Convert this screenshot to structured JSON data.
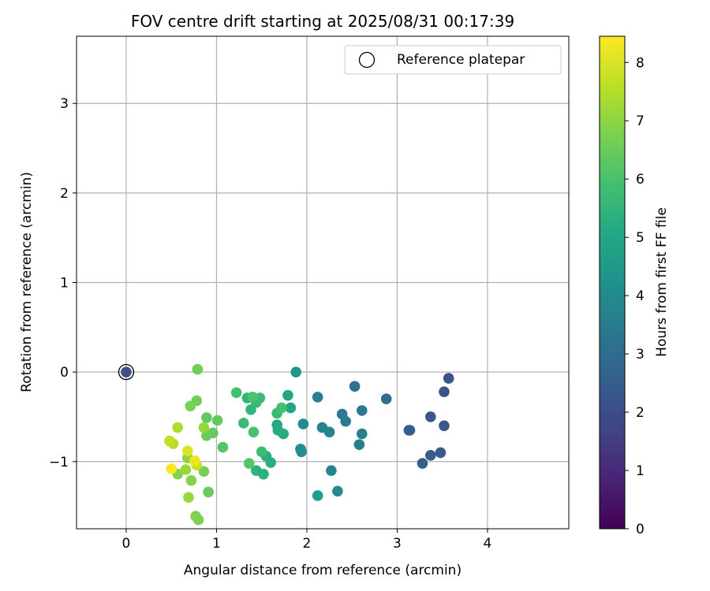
{
  "chart_data": {
    "type": "scatter",
    "title": "FOV centre drift starting at 2025/08/31 00:17:39",
    "xlabel": "Angular distance from reference (arcmin)",
    "ylabel": "Rotation from reference (arcmin)",
    "xlim": [
      -0.55,
      4.9
    ],
    "ylim": [
      -1.75,
      3.75
    ],
    "xticks": [
      0,
      1,
      2,
      3,
      4
    ],
    "yticks": [
      -1,
      0,
      1,
      2,
      3
    ],
    "grid": true,
    "legend": {
      "position": "top-right",
      "entries": [
        "Reference platepar"
      ]
    },
    "colorbar": {
      "label": "Hours from first FF file",
      "colormap": "viridis",
      "range": [
        0,
        8.45
      ],
      "ticks": [
        0,
        1,
        2,
        3,
        4,
        5,
        6,
        7,
        8
      ]
    },
    "reference": {
      "x": 0,
      "y": 0,
      "label": "Reference platepar",
      "hours": 2.0
    },
    "points": [
      {
        "x": 3.57,
        "y": -0.07,
        "h": 2.2
      },
      {
        "x": 3.52,
        "y": -0.22,
        "h": 2.2
      },
      {
        "x": 3.37,
        "y": -0.5,
        "h": 2.3
      },
      {
        "x": 3.52,
        "y": -0.6,
        "h": 2.3
      },
      {
        "x": 3.14,
        "y": -0.65,
        "h": 2.4
      },
      {
        "x": 3.13,
        "y": -0.65,
        "h": 2.4
      },
      {
        "x": 3.48,
        "y": -0.9,
        "h": 2.4
      },
      {
        "x": 3.37,
        "y": -0.93,
        "h": 2.5
      },
      {
        "x": 3.28,
        "y": -1.02,
        "h": 2.5
      },
      {
        "x": 2.88,
        "y": -0.3,
        "h": 3.0
      },
      {
        "x": 2.53,
        "y": -0.16,
        "h": 3.2
      },
      {
        "x": 2.61,
        "y": -0.43,
        "h": 3.4
      },
      {
        "x": 2.39,
        "y": -0.47,
        "h": 3.4
      },
      {
        "x": 2.43,
        "y": -0.55,
        "h": 3.5
      },
      {
        "x": 2.61,
        "y": -0.69,
        "h": 3.6
      },
      {
        "x": 2.58,
        "y": -0.81,
        "h": 3.6
      },
      {
        "x": 2.12,
        "y": -0.28,
        "h": 3.6
      },
      {
        "x": 2.17,
        "y": -0.62,
        "h": 3.8
      },
      {
        "x": 2.25,
        "y": -0.67,
        "h": 3.8
      },
      {
        "x": 2.27,
        "y": -1.1,
        "h": 3.9
      },
      {
        "x": 2.34,
        "y": -1.33,
        "h": 4.0
      },
      {
        "x": 1.96,
        "y": -0.58,
        "h": 4.0
      },
      {
        "x": 1.93,
        "y": -0.86,
        "h": 4.2
      },
      {
        "x": 1.94,
        "y": -0.89,
        "h": 4.2
      },
      {
        "x": 1.88,
        "y": 0.0,
        "h": 4.4
      },
      {
        "x": 2.12,
        "y": -1.38,
        "h": 4.7
      },
      {
        "x": 1.79,
        "y": -0.26,
        "h": 5.0
      },
      {
        "x": 1.82,
        "y": -0.4,
        "h": 5.0
      },
      {
        "x": 1.67,
        "y": -0.59,
        "h": 5.1
      },
      {
        "x": 1.68,
        "y": -0.65,
        "h": 5.2
      },
      {
        "x": 1.74,
        "y": -0.69,
        "h": 5.2
      },
      {
        "x": 1.6,
        "y": -1.01,
        "h": 5.3
      },
      {
        "x": 1.55,
        "y": -0.94,
        "h": 5.3
      },
      {
        "x": 1.52,
        "y": -1.14,
        "h": 5.4
      },
      {
        "x": 1.44,
        "y": -1.1,
        "h": 5.4
      },
      {
        "x": 1.38,
        "y": -0.42,
        "h": 5.5
      },
      {
        "x": 1.34,
        "y": -0.29,
        "h": 5.5
      },
      {
        "x": 1.44,
        "y": -0.34,
        "h": 5.6
      },
      {
        "x": 1.48,
        "y": -0.29,
        "h": 5.7
      },
      {
        "x": 1.3,
        "y": -0.57,
        "h": 5.7
      },
      {
        "x": 1.67,
        "y": -0.46,
        "h": 5.7
      },
      {
        "x": 1.5,
        "y": -0.89,
        "h": 5.8
      },
      {
        "x": 1.22,
        "y": -0.23,
        "h": 5.9
      },
      {
        "x": 1.72,
        "y": -0.4,
        "h": 5.9
      },
      {
        "x": 1.4,
        "y": -0.28,
        "h": 6.0
      },
      {
        "x": 1.41,
        "y": -0.67,
        "h": 6.0
      },
      {
        "x": 1.36,
        "y": -1.02,
        "h": 6.2
      },
      {
        "x": 1.07,
        "y": -0.84,
        "h": 6.2
      },
      {
        "x": 1.01,
        "y": -0.54,
        "h": 6.4
      },
      {
        "x": 0.96,
        "y": -0.68,
        "h": 6.4
      },
      {
        "x": 0.89,
        "y": -0.51,
        "h": 6.4
      },
      {
        "x": 0.89,
        "y": -0.71,
        "h": 6.5
      },
      {
        "x": 0.91,
        "y": -1.34,
        "h": 6.5
      },
      {
        "x": 0.79,
        "y": 0.03,
        "h": 6.6
      },
      {
        "x": 0.78,
        "y": -0.32,
        "h": 6.6
      },
      {
        "x": 0.71,
        "y": -0.38,
        "h": 6.7
      },
      {
        "x": 0.86,
        "y": -1.11,
        "h": 6.7
      },
      {
        "x": 0.8,
        "y": -1.65,
        "h": 6.8
      },
      {
        "x": 0.77,
        "y": -1.61,
        "h": 6.8
      },
      {
        "x": 0.72,
        "y": -1.21,
        "h": 6.9
      },
      {
        "x": 0.57,
        "y": -1.14,
        "h": 6.9
      },
      {
        "x": 0.68,
        "y": -0.96,
        "h": 7.0
      },
      {
        "x": 0.69,
        "y": -1.4,
        "h": 7.1
      },
      {
        "x": 0.86,
        "y": -0.62,
        "h": 7.1
      },
      {
        "x": 0.66,
        "y": -1.09,
        "h": 7.2
      },
      {
        "x": 0.57,
        "y": -0.62,
        "h": 7.4
      },
      {
        "x": 0.52,
        "y": -0.8,
        "h": 7.5
      },
      {
        "x": 0.48,
        "y": -0.77,
        "h": 7.7
      },
      {
        "x": 0.78,
        "y": -1.04,
        "h": 7.8
      },
      {
        "x": 0.68,
        "y": -0.88,
        "h": 8.0
      },
      {
        "x": 0.76,
        "y": -0.99,
        "h": 8.2
      },
      {
        "x": 0.5,
        "y": -1.08,
        "h": 8.4
      }
    ]
  }
}
